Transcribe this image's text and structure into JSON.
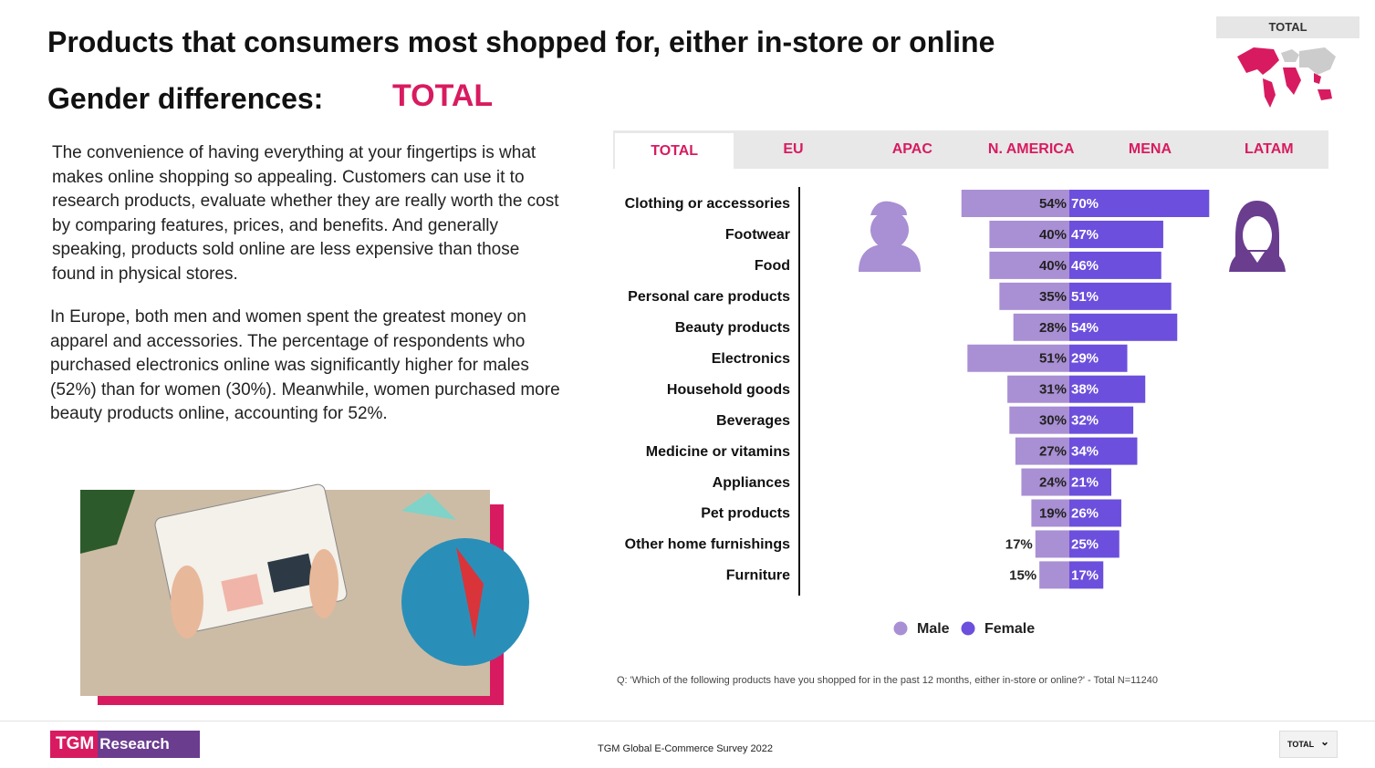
{
  "header": {
    "title": "Products that consumers most shopped for, either in-store or online",
    "subtitle": "Gender differences:",
    "region": "TOTAL"
  },
  "map_label": "TOTAL",
  "body": [
    "The convenience of having everything at your fingertips is what makes online shopping so appealing. Customers can use it to research products, evaluate whether they are really worth the cost by comparing features, prices, and benefits. And generally speaking, products sold online are less expensive than those found in physical stores.",
    "In Europe, both men and women spent the greatest money on apparel and accessories. The percentage of respondents who purchased electronics online was significantly higher for males (52%) than for women (30%). Meanwhile, women purchased more beauty products online, accounting for 52%."
  ],
  "tabs": [
    "TOTAL",
    "EU",
    "APAC",
    "N. AMERICA",
    "MENA",
    "LATAM"
  ],
  "chart_data": {
    "type": "butterfly",
    "categories": [
      "Clothing or accessories",
      "Footwear",
      "Food",
      "Personal care products",
      "Beauty products",
      "Electronics",
      "Household goods",
      "Beverages",
      "Medicine or vitamins",
      "Appliances",
      "Pet products",
      "Other home furnishings",
      "Furniture"
    ],
    "series": [
      {
        "name": "Male",
        "color": "#a98fd3",
        "values": [
          54,
          40,
          40,
          35,
          28,
          51,
          31,
          30,
          27,
          24,
          19,
          17,
          15
        ],
        "value_labels": [
          "54%",
          "40%",
          "40%",
          "35%",
          "28%",
          "51%",
          "31%",
          "30%",
          "27%",
          "24%",
          "19%",
          "17%",
          "15%"
        ]
      },
      {
        "name": "Female",
        "color": "#6c4fdc",
        "values": [
          70,
          47,
          46,
          51,
          54,
          29,
          38,
          32,
          34,
          21,
          26,
          25,
          17
        ],
        "value_labels": [
          "70%",
          "47%",
          "46%",
          "51%",
          "54%",
          "29%",
          "38%",
          "32%",
          "34%",
          "21%",
          "26%",
          "25%",
          "17%"
        ]
      }
    ],
    "note": "Q: 'Which of the following products have you shopped for in the past 12 months, either in-store or online?' - Total N=11240"
  },
  "footer": {
    "logo": [
      "TGM",
      "Research"
    ],
    "source": "TGM Global E-Commerce Survey 2022",
    "dropdown": "TOTAL"
  }
}
